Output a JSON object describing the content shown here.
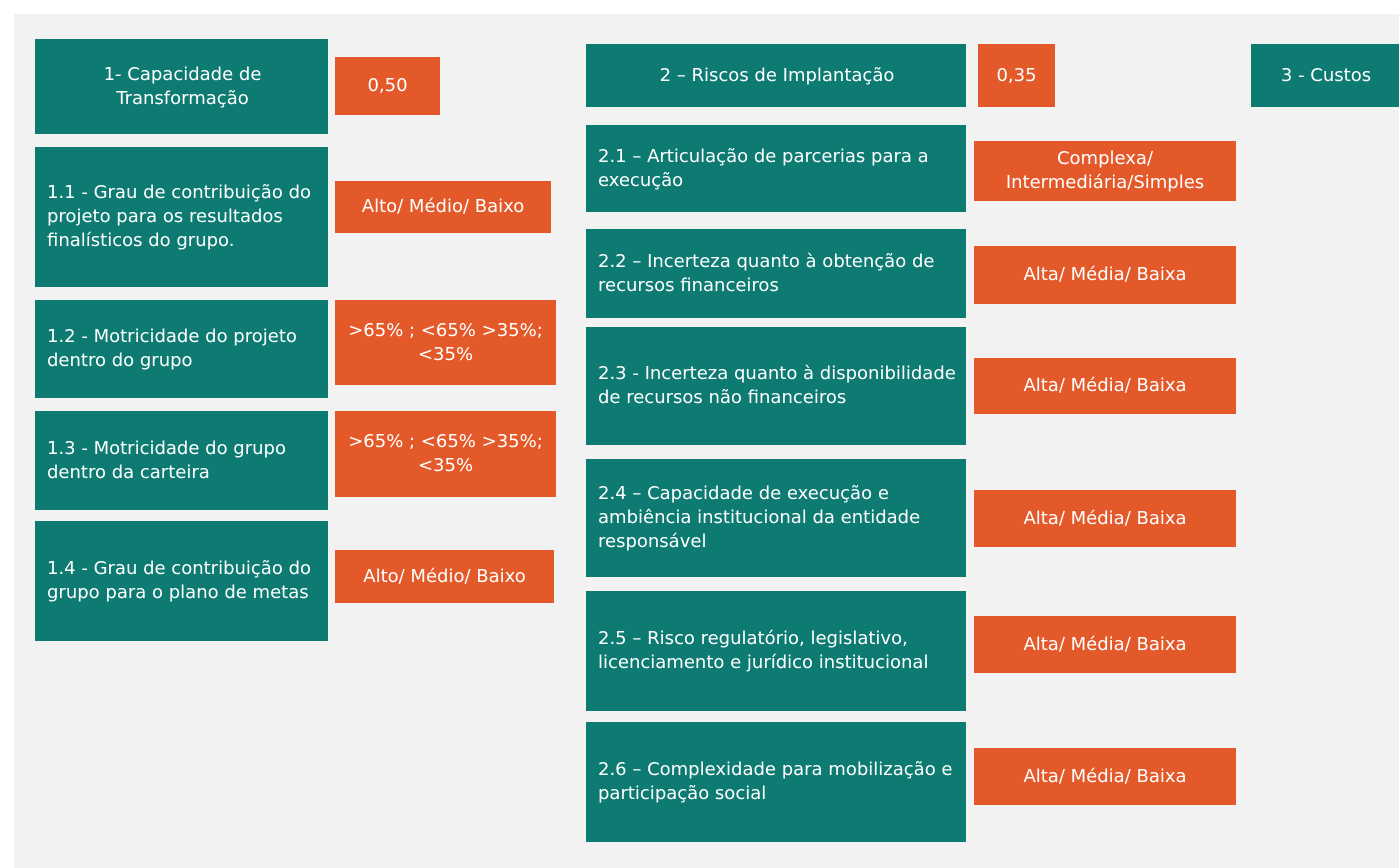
{
  "groups": [
    {
      "title": "1- Capacidade de Transformação",
      "weight": "0,50",
      "criteria": [
        {
          "label": "1.1 - Grau de contribuição do projeto para os resultados finalísticos do grupo.",
          "scale": "Alto/ Médio/ Baixo"
        },
        {
          "label": "1.2 - Motricidade do projeto dentro do grupo",
          "scale": ">65% ; <65% >35%; <35%"
        },
        {
          "label": "1.3 - Motricidade do grupo dentro da carteira",
          "scale": ">65% ; <65% >35%; <35%"
        },
        {
          "label": "1.4 - Grau de contribuição do grupo para o plano de metas",
          "scale": "Alto/ Médio/ Baixo"
        }
      ]
    },
    {
      "title": "2 – Riscos de Implantação",
      "weight": "0,35",
      "criteria": [
        {
          "label": "2.1 – Articulação de parcerias para a execução",
          "scale": "Complexa/ Intermediária/Simples"
        },
        {
          "label": "2.2 – Incerteza quanto à obtenção de recursos financeiros",
          "scale": "Alta/ Média/ Baixa"
        },
        {
          "label": "2.3 - Incerteza quanto à disponibilidade de recursos não financeiros",
          "scale": "Alta/ Média/ Baixa"
        },
        {
          "label": "2.4 – Capacidade de execução e ambiência institucional da entidade responsável",
          "scale": "Alta/ Média/ Baixa"
        },
        {
          "label": "2.5 – Risco regulatório, legislativo, licenciamento e jurídico institucional",
          "scale": "Alta/ Média/ Baixa"
        },
        {
          "label": "2.6 – Complexidade para mobilização e participação social",
          "scale": "Alta/ Média/ Baixa"
        }
      ]
    },
    {
      "title": "3 - Custos"
    }
  ]
}
